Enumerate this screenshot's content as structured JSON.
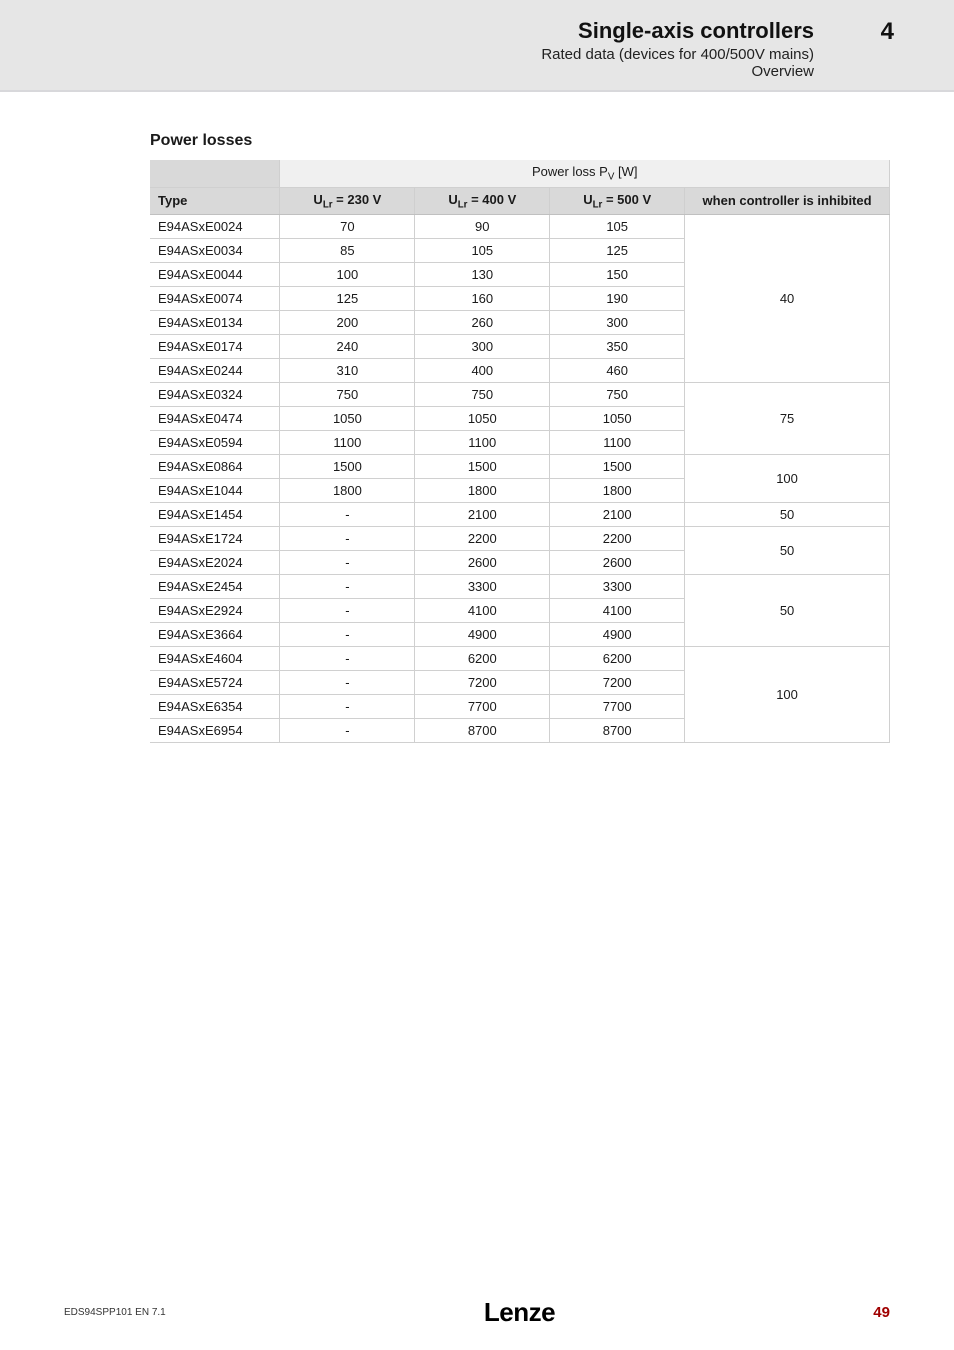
{
  "header": {
    "title": "Single-axis controllers",
    "subtitle": "Rated data (devices for 400/500V mains)",
    "subtitle2": "Overview",
    "chapter": "4"
  },
  "section_title": "Power losses",
  "table": {
    "group_header": "Power loss P",
    "group_header_sub": "V",
    "group_header_unit": " [W]",
    "col_type": "Type",
    "col_230": "U",
    "col_230_sub": "Lr",
    "col_230_rest": " = 230 V",
    "col_400": "U",
    "col_400_sub": "Lr",
    "col_400_rest": " = 400 V",
    "col_500": "U",
    "col_500_sub": "Lr",
    "col_500_rest": " = 500 V",
    "col_inhib": "when controller is inhibited",
    "colors": {
      "header_bg_light": "#f0f0f0",
      "header_bg_dark": "#d9d9d9",
      "border": "#d0d0d0"
    },
    "groups": [
      {
        "inhibited": "40",
        "rows": [
          {
            "type": "E94ASxE0024",
            "v230": "70",
            "v400": "90",
            "v500": "105"
          },
          {
            "type": "E94ASxE0034",
            "v230": "85",
            "v400": "105",
            "v500": "125"
          },
          {
            "type": "E94ASxE0044",
            "v230": "100",
            "v400": "130",
            "v500": "150"
          },
          {
            "type": "E94ASxE0074",
            "v230": "125",
            "v400": "160",
            "v500": "190"
          },
          {
            "type": "E94ASxE0134",
            "v230": "200",
            "v400": "260",
            "v500": "300"
          },
          {
            "type": "E94ASxE0174",
            "v230": "240",
            "v400": "300",
            "v500": "350"
          },
          {
            "type": "E94ASxE0244",
            "v230": "310",
            "v400": "400",
            "v500": "460"
          }
        ]
      },
      {
        "inhibited": "75",
        "rows": [
          {
            "type": "E94ASxE0324",
            "v230": "750",
            "v400": "750",
            "v500": "750"
          },
          {
            "type": "E94ASxE0474",
            "v230": "1050",
            "v400": "1050",
            "v500": "1050"
          },
          {
            "type": "E94ASxE0594",
            "v230": "1100",
            "v400": "1100",
            "v500": "1100"
          }
        ]
      },
      {
        "inhibited": "100",
        "rows": [
          {
            "type": "E94ASxE0864",
            "v230": "1500",
            "v400": "1500",
            "v500": "1500"
          },
          {
            "type": "E94ASxE1044",
            "v230": "1800",
            "v400": "1800",
            "v500": "1800"
          }
        ]
      },
      {
        "inhibited": "50",
        "rows": [
          {
            "type": "E94ASxE1454",
            "v230": "-",
            "v400": "2100",
            "v500": "2100"
          }
        ]
      },
      {
        "inhibited": "50",
        "rows": [
          {
            "type": "E94ASxE1724",
            "v230": "-",
            "v400": "2200",
            "v500": "2200"
          },
          {
            "type": "E94ASxE2024",
            "v230": "-",
            "v400": "2600",
            "v500": "2600"
          }
        ]
      },
      {
        "inhibited": "50",
        "rows": [
          {
            "type": "E94ASxE2454",
            "v230": "-",
            "v400": "3300",
            "v500": "3300"
          },
          {
            "type": "E94ASxE2924",
            "v230": "-",
            "v400": "4100",
            "v500": "4100"
          },
          {
            "type": "E94ASxE3664",
            "v230": "-",
            "v400": "4900",
            "v500": "4900"
          }
        ]
      },
      {
        "inhibited": "100",
        "rows": [
          {
            "type": "E94ASxE4604",
            "v230": "-",
            "v400": "6200",
            "v500": "6200"
          },
          {
            "type": "E94ASxE5724",
            "v230": "-",
            "v400": "7200",
            "v500": "7200"
          },
          {
            "type": "E94ASxE6354",
            "v230": "-",
            "v400": "7700",
            "v500": "7700"
          },
          {
            "type": "E94ASxE6954",
            "v230": "-",
            "v400": "8700",
            "v500": "8700"
          }
        ]
      }
    ]
  },
  "footer": {
    "doc_id": "EDS94SPP101  EN   7.1",
    "logo": "Lenze",
    "page": "49"
  }
}
